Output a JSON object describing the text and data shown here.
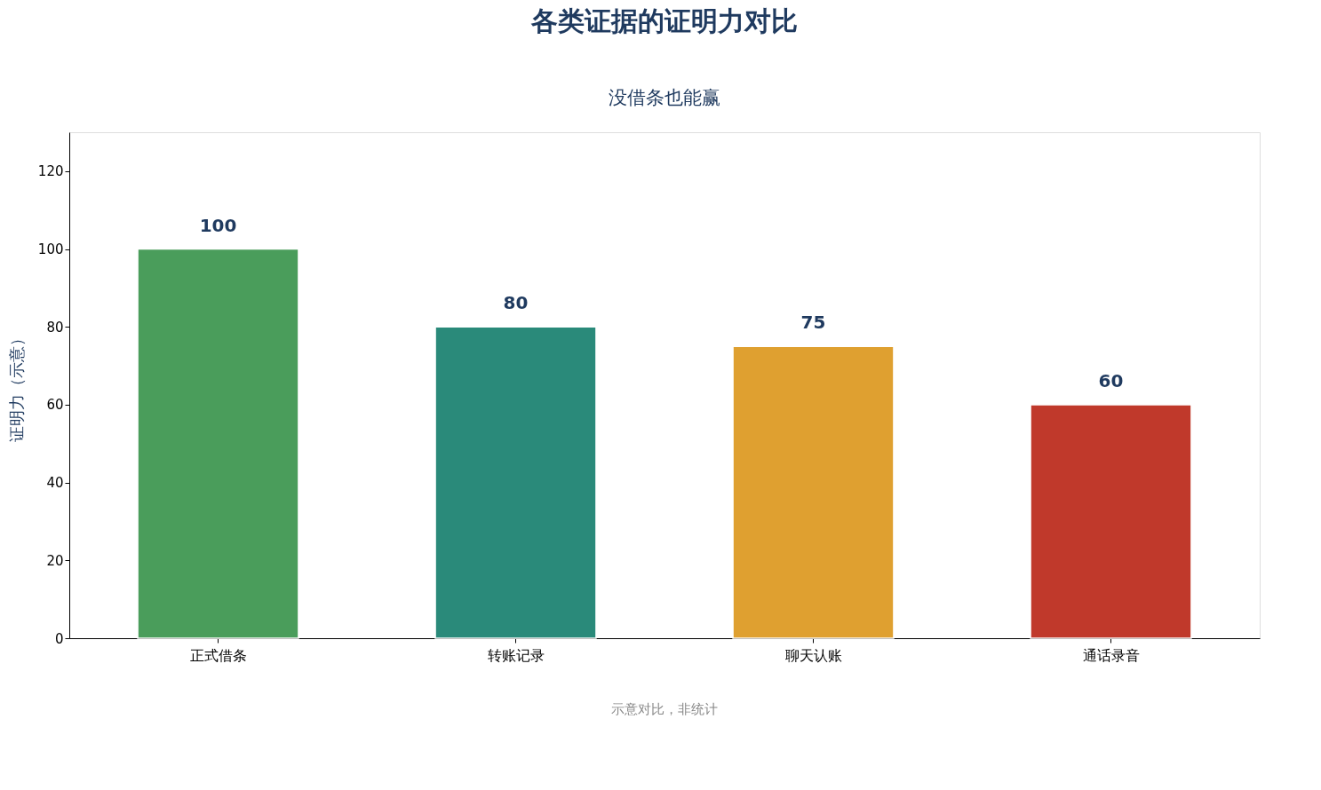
{
  "chart_data": {
    "type": "bar",
    "title": "各类证据的证明力对比",
    "subtitle": "没借条也能赢",
    "ylabel": "证明力（示意）",
    "categories": [
      "正式借条",
      "转账记录",
      "聊天认账",
      "通话录音"
    ],
    "values": [
      100,
      80,
      75,
      60
    ],
    "colors": [
      "#4a9d5b",
      "#2a8a7a",
      "#dfa030",
      "#c0392b"
    ],
    "ylim": [
      0,
      130
    ],
    "yticks": [
      0,
      20,
      40,
      60,
      80,
      100,
      120
    ],
    "data_labels": true,
    "grid": false,
    "annotations": [
      "示意对比，非统计"
    ]
  }
}
